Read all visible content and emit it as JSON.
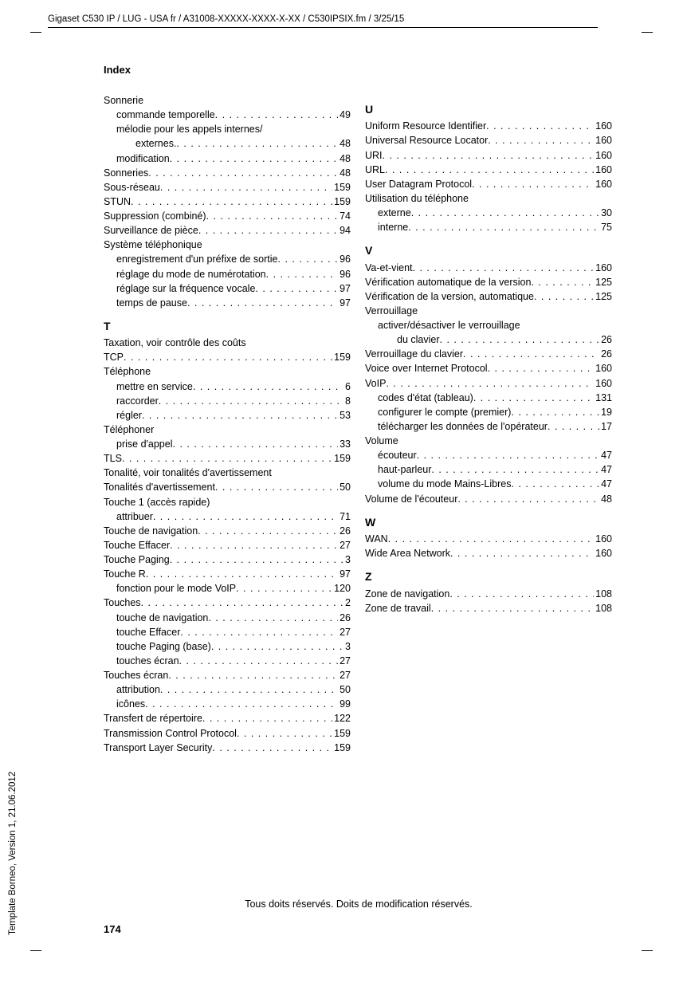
{
  "header_path": "Gigaset C530 IP / LUG - USA fr / A31008-XXXXX-XXXX-X-XX / C530IPSIX.fm / 3/25/15",
  "side_text": "Template Borneo, Version 1, 21.06.2012",
  "running_head": "Index",
  "footer": "Tous doits réservés. Doits de modification réservés.",
  "page_number": "174",
  "col_left": [
    {
      "type": "line",
      "label": "Sonnerie"
    },
    {
      "type": "entry",
      "indent": 1,
      "label": "commande temporelle",
      "page": "49"
    },
    {
      "type": "line",
      "indent": 1,
      "label": "mélodie pour les appels internes/"
    },
    {
      "type": "entry",
      "indent": 2,
      "label": "externes.",
      "page": "48"
    },
    {
      "type": "entry",
      "indent": 1,
      "label": "modification",
      "page": "48"
    },
    {
      "type": "entry",
      "label": "Sonneries",
      "page": "48"
    },
    {
      "type": "entry",
      "label": "Sous-réseau",
      "page": "159"
    },
    {
      "type": "entry",
      "label": "STUN",
      "page": "159"
    },
    {
      "type": "entry",
      "label": "Suppression (combiné)",
      "page": "74"
    },
    {
      "type": "entry",
      "label": "Surveillance de pièce",
      "page": "94"
    },
    {
      "type": "line",
      "label": "Système téléphonique"
    },
    {
      "type": "entry",
      "indent": 1,
      "label": "enregistrement d'un préfixe de sortie",
      "page": "96"
    },
    {
      "type": "entry",
      "indent": 1,
      "label": "réglage du mode de numérotation",
      "page": "96"
    },
    {
      "type": "entry",
      "indent": 1,
      "label": "réglage sur la fréquence vocale",
      "page": "97"
    },
    {
      "type": "entry",
      "indent": 1,
      "label": "temps de pause",
      "page": "97"
    },
    {
      "type": "letter",
      "label": "T"
    },
    {
      "type": "line",
      "label": "Taxation, voir contrôle des coûts"
    },
    {
      "type": "entry",
      "label": "TCP",
      "page": "159"
    },
    {
      "type": "line",
      "label": "Téléphone"
    },
    {
      "type": "entry",
      "indent": 1,
      "label": "mettre en service",
      "page": "6"
    },
    {
      "type": "entry",
      "indent": 1,
      "label": "raccorder",
      "page": "8"
    },
    {
      "type": "entry",
      "indent": 1,
      "label": "régler",
      "page": "53"
    },
    {
      "type": "line",
      "label": "Téléphoner"
    },
    {
      "type": "entry",
      "indent": 1,
      "label": "prise d'appel",
      "page": "33"
    },
    {
      "type": "entry",
      "label": "TLS",
      "page": "159"
    },
    {
      "type": "line",
      "label": "Tonalité, voir tonalités d'avertissement"
    },
    {
      "type": "entry",
      "label": "Tonalités d'avertissement",
      "page": "50"
    },
    {
      "type": "line",
      "label": "Touche 1 (accès rapide)"
    },
    {
      "type": "entry",
      "indent": 1,
      "label": "attribuer",
      "page": "71"
    },
    {
      "type": "entry",
      "label": "Touche de navigation",
      "page": "26"
    },
    {
      "type": "entry",
      "label": "Touche Effacer",
      "page": "27"
    },
    {
      "type": "entry",
      "label": "Touche Paging",
      "page": "3"
    },
    {
      "type": "entry",
      "label": "Touche R",
      "page": "97"
    },
    {
      "type": "entry",
      "indent": 1,
      "label": "fonction pour le mode VoIP",
      "page": "120"
    },
    {
      "type": "entry",
      "label": "Touches",
      "page": "2"
    },
    {
      "type": "entry",
      "indent": 1,
      "label": "touche de navigation",
      "page": "26"
    },
    {
      "type": "entry",
      "indent": 1,
      "label": "touche Effacer",
      "page": "27"
    },
    {
      "type": "entry",
      "indent": 1,
      "label": "touche Paging (base)",
      "page": "3"
    },
    {
      "type": "entry",
      "indent": 1,
      "label": "touches écran",
      "page": "27"
    },
    {
      "type": "entry",
      "label": "Touches écran",
      "page": "27"
    },
    {
      "type": "entry",
      "indent": 1,
      "label": "attribution",
      "page": "50"
    },
    {
      "type": "entry",
      "indent": 1,
      "label": "icônes",
      "page": "99"
    },
    {
      "type": "entry",
      "label": "Transfert de répertoire",
      "page": "122"
    },
    {
      "type": "entry",
      "label": "Transmission Control Protocol",
      "page": "159"
    },
    {
      "type": "entry",
      "label": "Transport Layer Security",
      "page": "159"
    }
  ],
  "col_right": [
    {
      "type": "letter",
      "label": "U"
    },
    {
      "type": "entry",
      "label": "Uniform Resource Identifier",
      "page": "160"
    },
    {
      "type": "entry",
      "label": "Universal Resource Locator",
      "page": "160"
    },
    {
      "type": "entry",
      "label": "URI",
      "page": "160"
    },
    {
      "type": "entry",
      "label": "URL",
      "page": "160"
    },
    {
      "type": "entry",
      "label": "User Datagram Protocol",
      "page": "160"
    },
    {
      "type": "line",
      "label": "Utilisation du téléphone"
    },
    {
      "type": "entry",
      "indent": 1,
      "label": "externe",
      "page": "30"
    },
    {
      "type": "entry",
      "indent": 1,
      "label": "interne",
      "page": "75"
    },
    {
      "type": "letter",
      "label": "V"
    },
    {
      "type": "entry",
      "label": "Va-et-vient",
      "page": "160"
    },
    {
      "type": "entry",
      "label": "Vérification automatique de la version",
      "page": "125"
    },
    {
      "type": "entry",
      "label": "Vérification de la version, automatique",
      "page": "125"
    },
    {
      "type": "line",
      "label": "Verrouillage"
    },
    {
      "type": "line",
      "indent": 1,
      "label": "activer/désactiver le verrouillage"
    },
    {
      "type": "entry",
      "indent": 2,
      "label": "du clavier",
      "page": "26"
    },
    {
      "type": "entry",
      "label": "Verrouillage du clavier",
      "page": "26"
    },
    {
      "type": "entry",
      "label": "Voice over Internet Protocol",
      "page": "160"
    },
    {
      "type": "entry",
      "label": "VoIP",
      "page": "160"
    },
    {
      "type": "entry",
      "indent": 1,
      "label": "codes d'état (tableau)",
      "page": "131"
    },
    {
      "type": "entry",
      "indent": 1,
      "label": "configurer le compte (premier)",
      "page": "19"
    },
    {
      "type": "entry",
      "indent": 1,
      "label": "télécharger les données de l'opérateur",
      "page": "17"
    },
    {
      "type": "line",
      "label": "Volume"
    },
    {
      "type": "entry",
      "indent": 1,
      "label": "écouteur",
      "page": "47"
    },
    {
      "type": "entry",
      "indent": 1,
      "label": "haut-parleur",
      "page": "47"
    },
    {
      "type": "entry",
      "indent": 1,
      "label": "volume du mode Mains-Libres",
      "page": "47"
    },
    {
      "type": "entry",
      "label": "Volume de l'écouteur",
      "page": "48"
    },
    {
      "type": "letter",
      "label": "W"
    },
    {
      "type": "entry",
      "label": "WAN",
      "page": "160"
    },
    {
      "type": "entry",
      "label": "Wide Area Network",
      "page": "160"
    },
    {
      "type": "letter",
      "label": "Z"
    },
    {
      "type": "entry",
      "label": "Zone de navigation",
      "page": "108"
    },
    {
      "type": "entry",
      "label": "Zone de travail",
      "page": "108"
    }
  ]
}
